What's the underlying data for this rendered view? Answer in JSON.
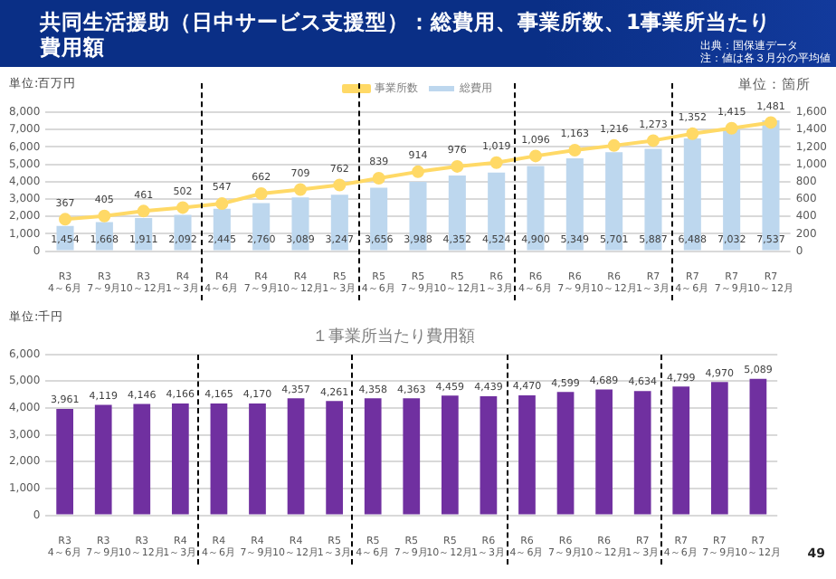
{
  "chart_data": [
    {
      "type": "bar",
      "title": "共同生活援助（日中サービス支援型）：総費用、事業所数、1事業所当たり費用額",
      "ylabel": "単位:百万円",
      "y2label": "単位：箇所",
      "annotations": [
        "出典：国保連データ",
        "注：値は各３月分の平均値"
      ],
      "categories": [
        "R3\n4～6月",
        "R3\n7～9月",
        "R3\n10～12月",
        "R4\n1～3月",
        "R4\n4～6月",
        "R4\n7～9月",
        "R4\n10～12月",
        "R5\n1～3月",
        "R5\n4～6月",
        "R5\n7～9月",
        "R5\n10～12月",
        "R6\n1～3月",
        "R6\n4～6月",
        "R6\n7～9月",
        "R6\n10～12月",
        "R7\n1～3月",
        "R7\n4～6月",
        "R7\n7～9月",
        "R7\n10～12月"
      ],
      "series": [
        {
          "name": "総費用",
          "type": "bar",
          "color": "#bdd7ee",
          "values": [
            1454,
            1668,
            1911,
            2092,
            2445,
            2760,
            3089,
            3247,
            3656,
            3988,
            4352,
            4524,
            4900,
            5349,
            5701,
            5887,
            6488,
            7032,
            7537
          ],
          "value_labels": [
            "1,454",
            "1,668",
            "1,911",
            "2,092",
            "2,445",
            "2,760",
            "3,089",
            "3,247",
            "3,656",
            "3,988",
            "4,352",
            "4,524",
            "4,900",
            "5,349",
            "5,701",
            "5,887",
            "6,488",
            "7,032",
            "7,537"
          ]
        },
        {
          "name": "事業所数",
          "type": "line",
          "axis": "y2",
          "color": "#ffd966",
          "values": [
            367,
            405,
            461,
            502,
            547,
            662,
            709,
            762,
            839,
            914,
            976,
            1019,
            1096,
            1163,
            1216,
            1273,
            1352,
            1415,
            1481
          ],
          "value_labels": [
            "367",
            "405",
            "461",
            "502",
            "547",
            "662",
            "709",
            "762",
            "839",
            "914",
            "976",
            "1,019",
            "1,096",
            "1,163",
            "1,216",
            "1,273",
            "1,352",
            "1,415",
            "1,481"
          ]
        }
      ],
      "ylim": [
        0,
        8000
      ],
      "yticks": [
        0,
        {
          "value": 1000,
          "label": "1,000"
        },
        {
          "value": 2000,
          "label": "2,000"
        },
        {
          "value": 3000,
          "label": "3,000"
        },
        {
          "value": 4000,
          "label": "4,000"
        },
        {
          "value": 5000,
          "label": "5,000"
        },
        {
          "value": 6000,
          "label": "6,000"
        },
        {
          "value": 7000,
          "label": "7,000"
        },
        {
          "value": 8000,
          "label": "8,000"
        }
      ],
      "y2lim": [
        0,
        1600
      ],
      "y2ticks": [
        0,
        200,
        400,
        600,
        800,
        {
          "value": 1000,
          "label": "1,000"
        },
        {
          "value": 1200,
          "label": "1,200"
        },
        {
          "value": 1400,
          "label": "1,400"
        },
        {
          "value": 1600,
          "label": "1,600"
        }
      ],
      "grid": "y",
      "legend": "top",
      "marker": "circle"
    },
    {
      "type": "bar",
      "title": "１事業所当たり費用額",
      "ylabel": "単位:千円",
      "annotations": [
        "49"
      ],
      "categories": [
        "R3\n4～6月",
        "R3\n7～9月",
        "R3\n10～12月",
        "R4\n1～3月",
        "R4\n4～6月",
        "R4\n7～9月",
        "R4\n10～12月",
        "R5\n1～3月",
        "R5\n4～6月",
        "R5\n7～9月",
        "R5\n10～12月",
        "R6\n1～3月",
        "R6\n4～6月",
        "R6\n7～9月",
        "R6\n10～12月",
        "R7\n1～3月",
        "R7\n4～6月",
        "R7\n7～9月",
        "R7\n10～12月"
      ],
      "color": "#7030a0",
      "values": [
        3961,
        4119,
        4146,
        4166,
        4165,
        4170,
        4357,
        4261,
        4358,
        4363,
        4459,
        4439,
        4470,
        4599,
        4689,
        4634,
        4799,
        4970,
        5089
      ],
      "value_labels": [
        "3,961",
        "4,119",
        "4,146",
        "4,166",
        "4,165",
        "4,170",
        "4,357",
        "4,261",
        "4,358",
        "4,363",
        "4,459",
        "4,439",
        "4,470",
        "4,599",
        "4,689",
        "4,634",
        "4,799",
        "4,970",
        "5,089"
      ],
      "ylim": [
        0,
        6000
      ],
      "yticks": [
        0,
        {
          "value": 1000,
          "label": "1,000"
        },
        {
          "value": 2000,
          "label": "2,000"
        },
        {
          "value": 3000,
          "label": "3,000"
        },
        {
          "value": 4000,
          "label": "4,000"
        },
        {
          "value": 5000,
          "label": "5,000"
        },
        {
          "value": 6000,
          "label": "6,000"
        }
      ],
      "grid": "y"
    }
  ]
}
